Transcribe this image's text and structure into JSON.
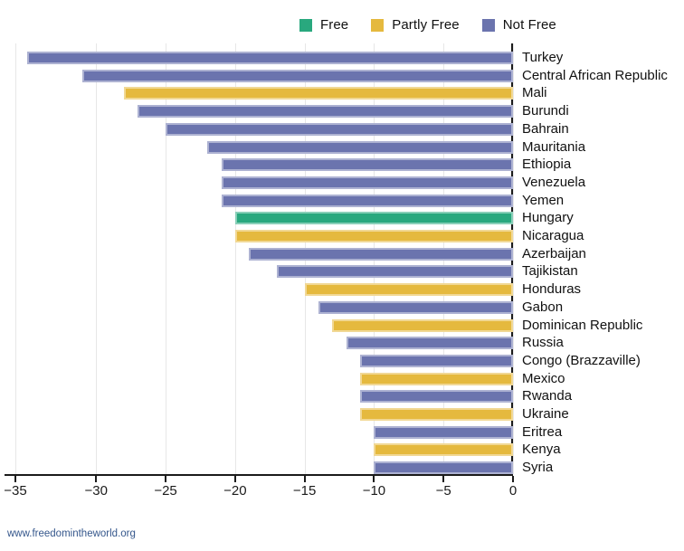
{
  "chart_data": {
    "type": "bar",
    "orientation": "horizontal",
    "legend_position": "top",
    "grid": true,
    "xlim": [
      -35.9,
      0
    ],
    "x_tick_values": [
      -35,
      -30,
      -25,
      -20,
      -15,
      -10,
      -5,
      0
    ],
    "x_tick_labels": [
      "−35",
      "−30",
      "−25",
      "−20",
      "−15",
      "−10",
      "−5",
      "0"
    ],
    "legend": [
      {
        "label": "Free",
        "color": "#29a87e"
      },
      {
        "label": "Partly Free",
        "color": "#e5b93e"
      },
      {
        "label": "Not Free",
        "color": "#6b74ae"
      }
    ],
    "status_colors": {
      "Free": "#29a87e",
      "Partly Free": "#e5b93e",
      "Not Free": "#6b74ae"
    },
    "rows": [
      {
        "country": "Turkey",
        "value": -35,
        "status": "Not Free"
      },
      {
        "country": "Central African Republic",
        "value": -31,
        "status": "Not Free"
      },
      {
        "country": "Mali",
        "value": -28,
        "status": "Partly Free"
      },
      {
        "country": "Burundi",
        "value": -27,
        "status": "Not Free"
      },
      {
        "country": "Bahrain",
        "value": -25,
        "status": "Not Free"
      },
      {
        "country": "Mauritania",
        "value": -22,
        "status": "Not Free"
      },
      {
        "country": "Ethiopia",
        "value": -21,
        "status": "Not Free"
      },
      {
        "country": "Venezuela",
        "value": -21,
        "status": "Not Free"
      },
      {
        "country": "Yemen",
        "value": -21,
        "status": "Not Free"
      },
      {
        "country": "Hungary",
        "value": -20,
        "status": "Free"
      },
      {
        "country": "Nicaragua",
        "value": -20,
        "status": "Partly Free"
      },
      {
        "country": "Azerbaijan",
        "value": -19,
        "status": "Not Free"
      },
      {
        "country": "Tajikistan",
        "value": -17,
        "status": "Not Free"
      },
      {
        "country": "Honduras",
        "value": -15,
        "status": "Partly Free"
      },
      {
        "country": "Gabon",
        "value": -14,
        "status": "Not Free"
      },
      {
        "country": "Dominican Republic",
        "value": -13,
        "status": "Partly Free"
      },
      {
        "country": "Russia",
        "value": -12,
        "status": "Not Free"
      },
      {
        "country": "Congo (Brazzaville)",
        "value": -11,
        "status": "Not Free"
      },
      {
        "country": "Mexico",
        "value": -11,
        "status": "Partly Free"
      },
      {
        "country": "Rwanda",
        "value": -11,
        "status": "Not Free"
      },
      {
        "country": "Ukraine",
        "value": -11,
        "status": "Partly Free"
      },
      {
        "country": "Eritrea",
        "value": -10,
        "status": "Not Free"
      },
      {
        "country": "Kenya",
        "value": -10,
        "status": "Partly Free"
      },
      {
        "country": "Syria",
        "value": -10,
        "status": "Not Free"
      }
    ]
  },
  "footer": {
    "link_text": "www.freedomintheworld.org"
  }
}
